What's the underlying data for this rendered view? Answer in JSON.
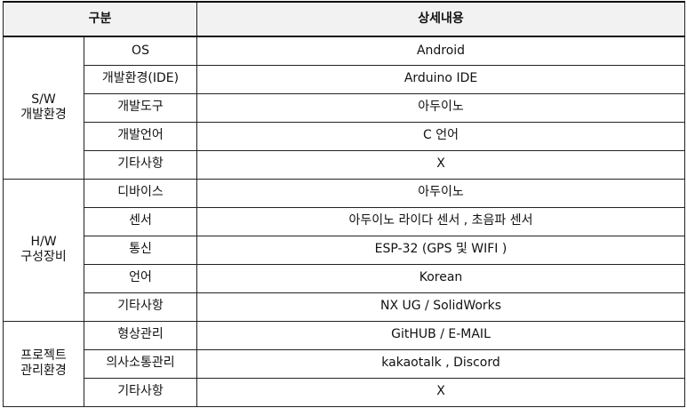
{
  "header": {
    "category": "구분",
    "detail": "상세내용"
  },
  "groups": [
    {
      "name_line1": "S/W",
      "name_line2": "개발환경",
      "rows": [
        {
          "item": "OS",
          "detail": "Android"
        },
        {
          "item": "개발환경(IDE)",
          "detail": "Arduino IDE"
        },
        {
          "item": "개발도구",
          "detail": "아두이노"
        },
        {
          "item": "개발언어",
          "detail": "C 언어"
        },
        {
          "item": "기타사항",
          "detail": "X"
        }
      ]
    },
    {
      "name_line1": "H/W",
      "name_line2": "구성장비",
      "rows": [
        {
          "item": "디바이스",
          "detail": "아두이노"
        },
        {
          "item": "센서",
          "detail": "아두이노 라이다 센서 , 초음파 센서"
        },
        {
          "item": "통신",
          "detail": "ESP-32 (GPS 및 WIFI )"
        },
        {
          "item": "언어",
          "detail": "Korean"
        },
        {
          "item": "기타사항",
          "detail": "NX UG / SolidWorks"
        }
      ]
    },
    {
      "name_line1": "프로젝트",
      "name_line2": "관리환경",
      "rows": [
        {
          "item": "형상관리",
          "detail": "GitHUB / E-MAIL"
        },
        {
          "item": "의사소통관리",
          "detail": "kakaotalk , Discord"
        },
        {
          "item": "기타사항",
          "detail": "X"
        }
      ]
    }
  ]
}
